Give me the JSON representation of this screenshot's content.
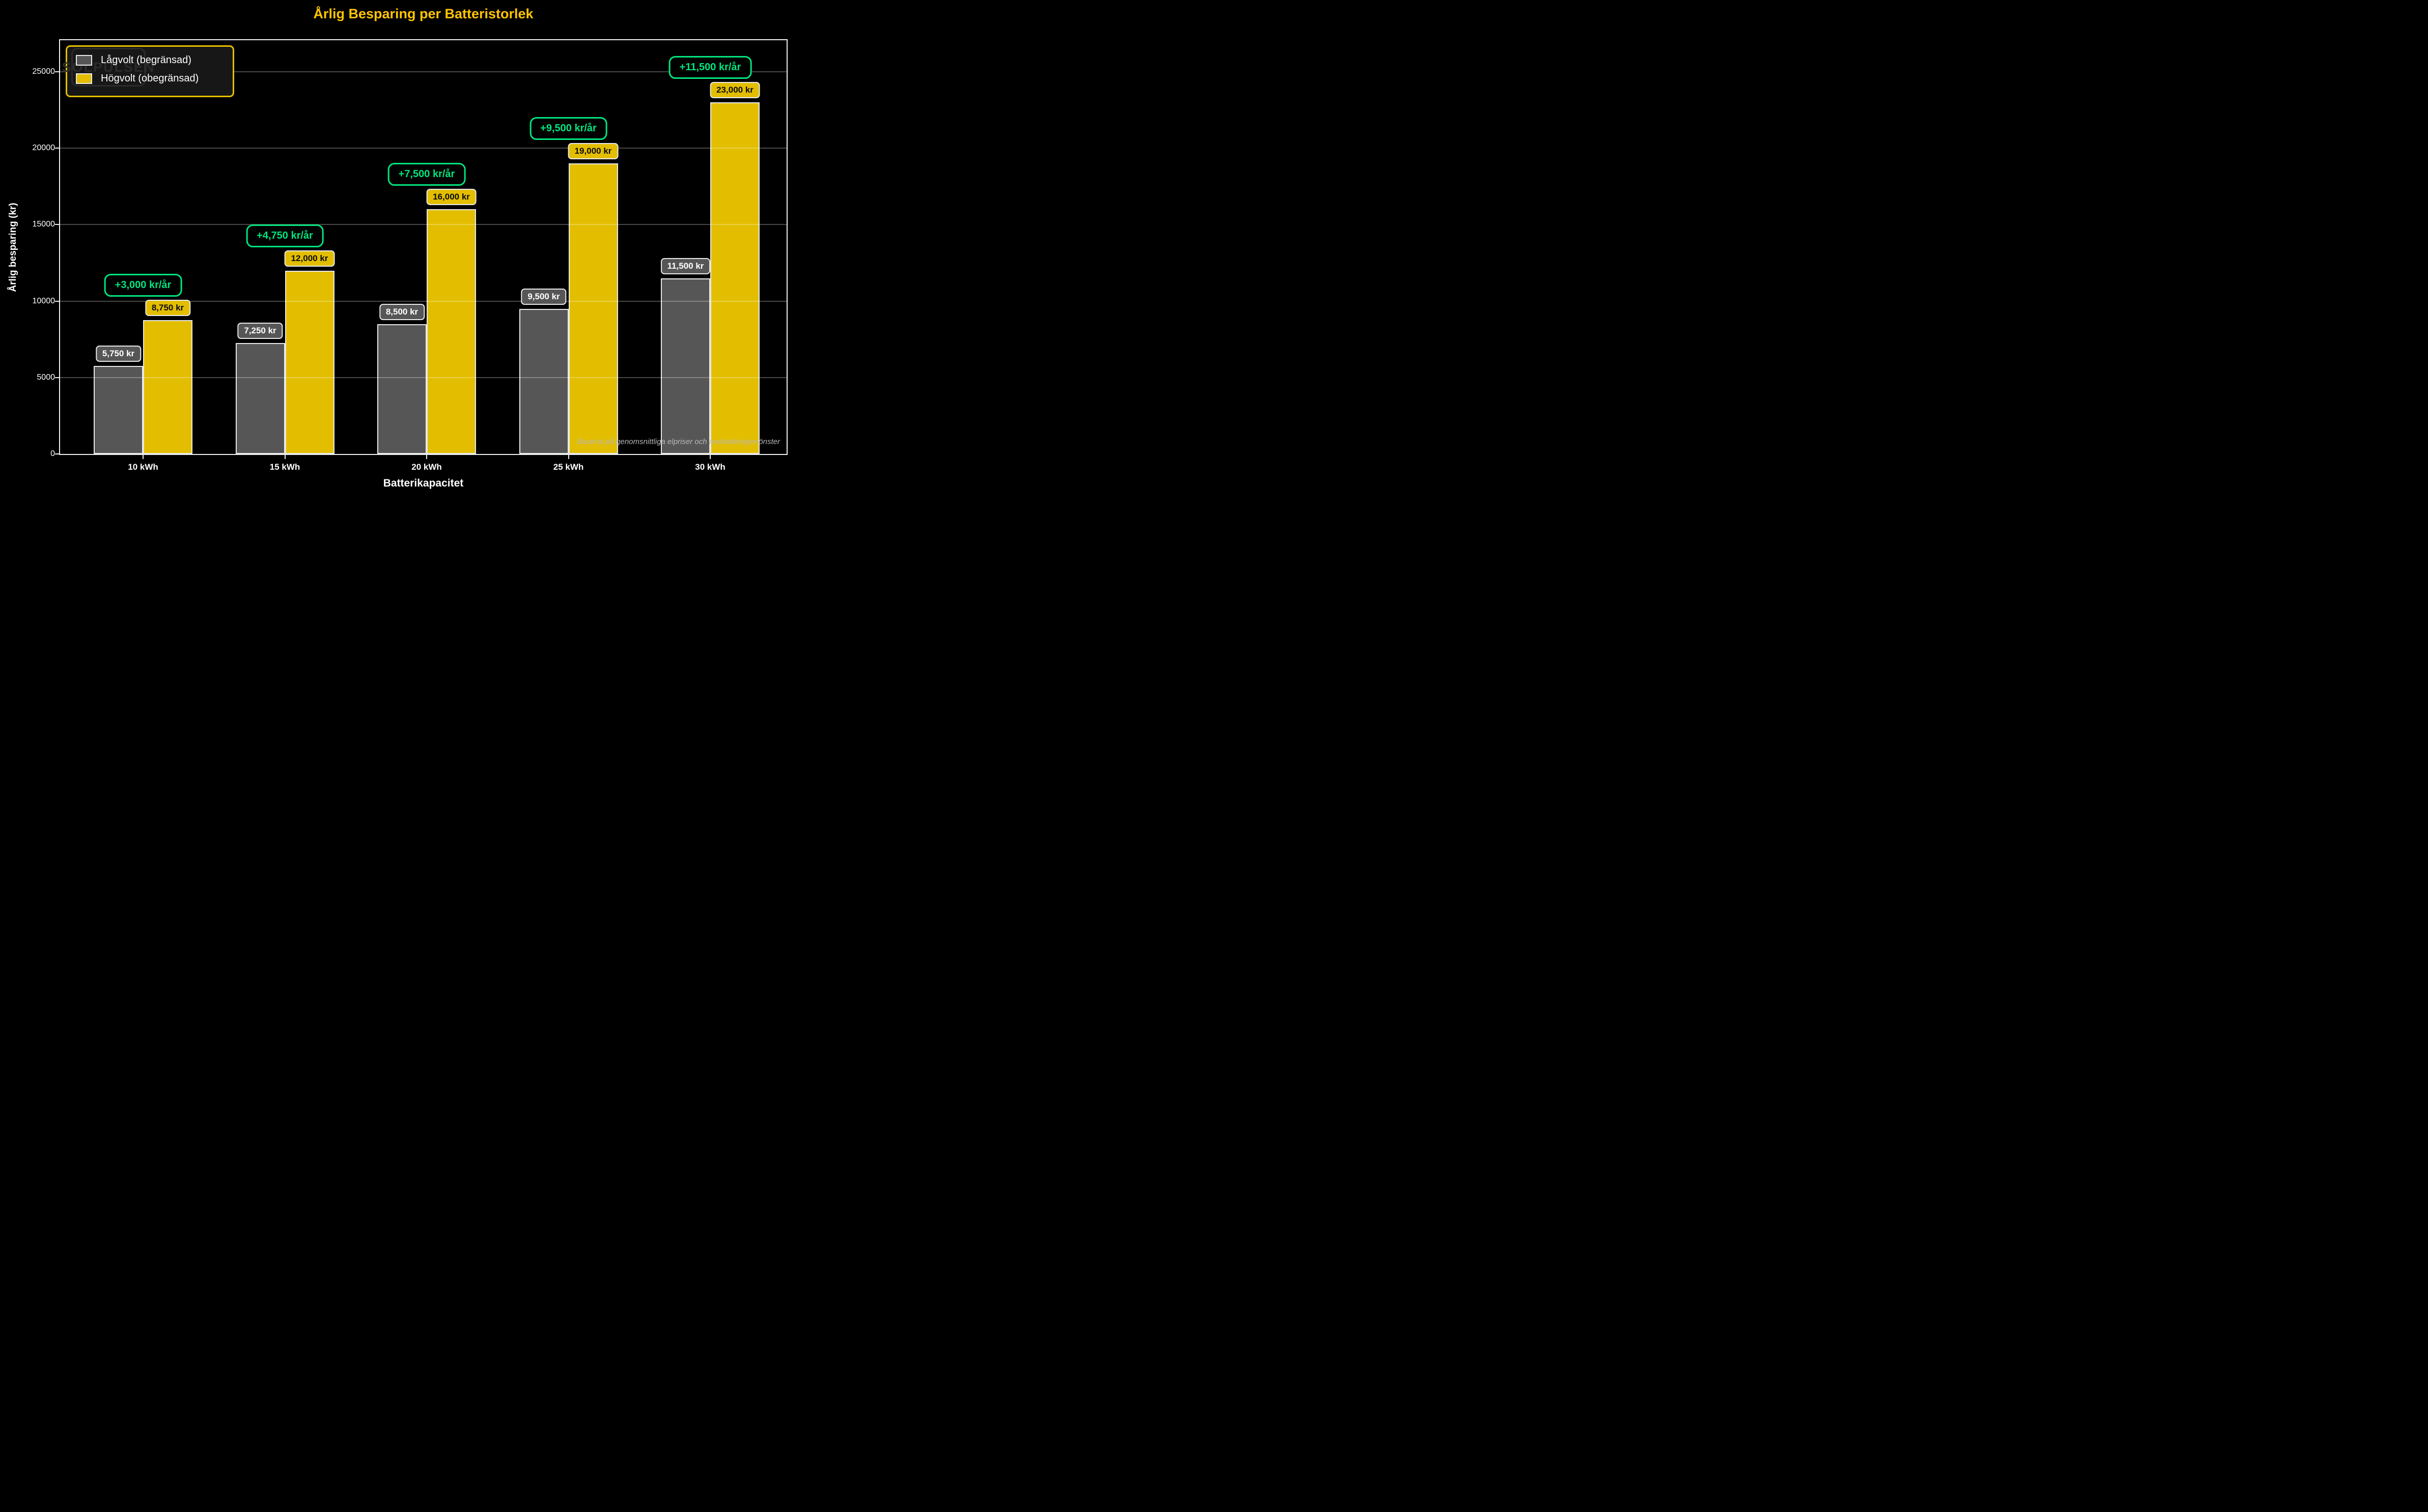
{
  "title": "Årlig Besparing per Batteristorlek",
  "watermark": "SOLPULSEN",
  "footnote": "Baserat på genomsnittliga elpriser och användningsmönster",
  "legend": {
    "items": [
      {
        "label": "Lågvolt (begränsad)",
        "swatch": "gray"
      },
      {
        "label": "Högvolt (obegränsad)",
        "swatch": "yellow"
      }
    ]
  },
  "x_axis": {
    "label": "Batterikapacitet",
    "tick_labels": [
      "10 kWh",
      "15 kWh",
      "20 kWh",
      "25 kWh",
      "30 kWh"
    ]
  },
  "y_axis": {
    "label": "Årlig besparing (kr)",
    "ticks": [
      {
        "value": 0,
        "label": "0"
      },
      {
        "value": 5000,
        "label": "5000"
      },
      {
        "value": 10000,
        "label": "10000"
      },
      {
        "value": 15000,
        "label": "15000"
      },
      {
        "value": 20000,
        "label": "20000"
      },
      {
        "value": 25000,
        "label": "25000"
      }
    ]
  },
  "chart_data": {
    "type": "bar",
    "title": "Årlig Besparing per Batteristorlek",
    "xlabel": "Batterikapacitet",
    "ylabel": "Årlig besparing (kr)",
    "categories": [
      "10 kWh",
      "15 kWh",
      "20 kWh",
      "25 kWh",
      "30 kWh"
    ],
    "series": [
      {
        "name": "Lågvolt (begränsad)",
        "color": "#565656",
        "values": [
          5750,
          7250,
          8500,
          9500,
          11500
        ],
        "value_labels": [
          "5,750 kr",
          "7,250 kr",
          "8,500 kr",
          "9,500 kr",
          "11,500 kr"
        ]
      },
      {
        "name": "Högvolt (obegränsad)",
        "color": "#e3be00",
        "values": [
          8750,
          12000,
          16000,
          19000,
          23000
        ],
        "value_labels": [
          "8,750 kr",
          "12,000 kr",
          "16,000 kr",
          "19,000 kr",
          "23,000 kr"
        ]
      }
    ],
    "diff_annotations": [
      "+3,000 kr/år",
      "+4,750 kr/år",
      "+7,500 kr/år",
      "+9,500 kr/år",
      "+11,500 kr/år"
    ],
    "ylim": [
      0,
      27000
    ],
    "grid": true,
    "legend_position": "upper left"
  },
  "colors": {
    "background": "#000000",
    "title": "#ffc400",
    "bar_gray": "#565656",
    "bar_yellow": "#e3be00",
    "bar_edge": "#e8e8e8",
    "green": "#00e57e",
    "grid": "rgba(255,255,255,0.28)",
    "spine": "#efefef",
    "text": "#ffffff",
    "footnote": "#b8b8b8",
    "watermark": "#2b2b2b",
    "legend_bg": "#171717",
    "legend_border": "#e3be00",
    "badge_text_dark": "#0a0a0a"
  }
}
